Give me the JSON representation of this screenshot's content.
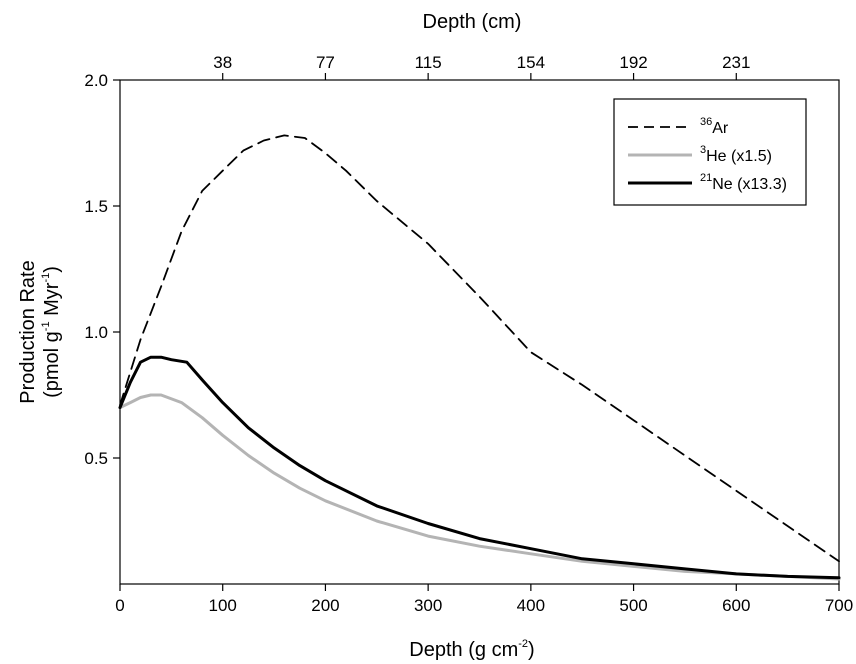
{
  "chart_data": {
    "type": "line",
    "xlabel": "Depth (g cm",
    "xlabel_sup": "-2",
    "xlabel_end": ")",
    "x2label": "Depth (cm)",
    "ylabel_line1": "Production Rate",
    "ylabel_line2_a": "(pmol g",
    "ylabel_line2_sup1": "-1",
    "ylabel_line2_b": " Myr",
    "ylabel_line2_sup2": "-1",
    "ylabel_line2_c": ")",
    "xlim": [
      0,
      700
    ],
    "ylim": [
      0,
      2.0
    ],
    "x_ticks": [
      0,
      100,
      200,
      300,
      400,
      500,
      600,
      700
    ],
    "y_ticks": [
      0.5,
      1.0,
      1.5,
      2.0
    ],
    "y_tick_labels": [
      "0.5",
      "1.0",
      "1.5",
      "2.0"
    ],
    "top_ticks": [
      {
        "x": 100,
        "label": "38"
      },
      {
        "x": 200,
        "label": "77"
      },
      {
        "x": 300,
        "label": "115"
      },
      {
        "x": 400,
        "label": "154"
      },
      {
        "x": 500,
        "label": "192"
      },
      {
        "x": 600,
        "label": "231"
      }
    ],
    "legend_position": "top-right",
    "series": [
      {
        "name_sup": "36",
        "name": "Ar",
        "style": "dashed",
        "color": "#000000",
        "x": [
          0,
          20,
          40,
          60,
          80,
          100,
          120,
          140,
          160,
          180,
          200,
          220,
          250,
          300,
          350,
          400,
          450,
          500,
          550,
          600,
          650,
          700
        ],
        "y": [
          0.71,
          0.97,
          1.18,
          1.4,
          1.56,
          1.64,
          1.72,
          1.76,
          1.78,
          1.77,
          1.71,
          1.64,
          1.52,
          1.35,
          1.14,
          0.92,
          0.79,
          0.65,
          0.51,
          0.37,
          0.23,
          0.09
        ]
      },
      {
        "name_sup": "3",
        "name": "He (x1.5)",
        "style": "solid",
        "color": "#b4b4b4",
        "x": [
          0,
          10,
          20,
          30,
          40,
          60,
          80,
          100,
          125,
          150,
          175,
          200,
          250,
          300,
          350,
          400,
          450,
          500,
          550,
          600,
          650,
          700
        ],
        "y": [
          0.7,
          0.72,
          0.74,
          0.75,
          0.75,
          0.72,
          0.66,
          0.59,
          0.51,
          0.44,
          0.38,
          0.33,
          0.25,
          0.19,
          0.15,
          0.12,
          0.09,
          0.07,
          0.05,
          0.04,
          0.03,
          0.02
        ]
      },
      {
        "name_sup": "21",
        "name": "Ne (x13.3)",
        "style": "solid",
        "color": "#000000",
        "x": [
          0,
          10,
          20,
          30,
          40,
          50,
          65,
          80,
          100,
          125,
          150,
          175,
          200,
          250,
          300,
          350,
          400,
          450,
          500,
          550,
          600,
          650,
          700
        ],
        "y": [
          0.7,
          0.8,
          0.88,
          0.9,
          0.9,
          0.89,
          0.88,
          0.81,
          0.72,
          0.62,
          0.54,
          0.47,
          0.41,
          0.31,
          0.24,
          0.18,
          0.14,
          0.1,
          0.08,
          0.06,
          0.04,
          0.03,
          0.025
        ]
      }
    ]
  }
}
